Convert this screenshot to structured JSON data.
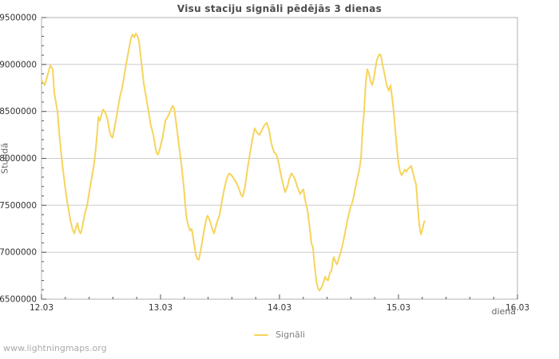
{
  "page": {
    "footer": "www.lightningmaps.org"
  },
  "colors": {
    "line": "#f6d45c",
    "grid": "#cccccc",
    "border": "#b0b0b0",
    "tick": "#555555",
    "tick_label": "#333333",
    "title": "#4d4d4d",
    "muted": "#888888",
    "footer": "#aaaaaa"
  },
  "chart_data": {
    "type": "line",
    "title": "Visu staciju signāli pēdējās 3 dienas",
    "xlabel": "dienā",
    "ylabel": "Stundā",
    "grid": "horizontal",
    "legend_position": "bottom-center",
    "xlim": [
      0,
      4
    ],
    "ylim": [
      6500000,
      9500000
    ],
    "x_minor_step": 0.2,
    "y_minor_step": 100000,
    "x_ticks": [
      {
        "t": 0,
        "label": "12.03"
      },
      {
        "t": 1,
        "label": "13.03"
      },
      {
        "t": 2,
        "label": "14.03"
      },
      {
        "t": 3,
        "label": "15.03"
      },
      {
        "t": 4,
        "label": "16.03"
      }
    ],
    "y_ticks": [
      {
        "v": 6500000,
        "label": "6500000"
      },
      {
        "v": 7000000,
        "label": "7000000"
      },
      {
        "v": 7500000,
        "label": "7500000"
      },
      {
        "v": 8000000,
        "label": "8000000"
      },
      {
        "v": 8500000,
        "label": "8500000"
      },
      {
        "v": 9000000,
        "label": "9000000"
      },
      {
        "v": 9500000,
        "label": "9500000"
      }
    ],
    "series": [
      {
        "name": "Signāli",
        "color": "#f6d45c",
        "points": [
          [
            0.0,
            8830000
          ],
          [
            0.027,
            8780000
          ],
          [
            0.047,
            8870000
          ],
          [
            0.074,
            8990000
          ],
          [
            0.094,
            8950000
          ],
          [
            0.107,
            8700000
          ],
          [
            0.134,
            8500000
          ],
          [
            0.154,
            8200000
          ],
          [
            0.174,
            7950000
          ],
          [
            0.188,
            7800000
          ],
          [
            0.208,
            7600000
          ],
          [
            0.228,
            7450000
          ],
          [
            0.242,
            7340000
          ],
          [
            0.262,
            7240000
          ],
          [
            0.275,
            7200000
          ],
          [
            0.289,
            7260000
          ],
          [
            0.302,
            7310000
          ],
          [
            0.315,
            7230000
          ],
          [
            0.329,
            7200000
          ],
          [
            0.342,
            7260000
          ],
          [
            0.362,
            7400000
          ],
          [
            0.383,
            7500000
          ],
          [
            0.403,
            7650000
          ],
          [
            0.423,
            7800000
          ],
          [
            0.443,
            7950000
          ],
          [
            0.456,
            8100000
          ],
          [
            0.47,
            8300000
          ],
          [
            0.477,
            8440000
          ],
          [
            0.49,
            8400000
          ],
          [
            0.503,
            8460000
          ],
          [
            0.517,
            8520000
          ],
          [
            0.53,
            8500000
          ],
          [
            0.544,
            8460000
          ],
          [
            0.557,
            8400000
          ],
          [
            0.57,
            8300000
          ],
          [
            0.584,
            8240000
          ],
          [
            0.597,
            8220000
          ],
          [
            0.617,
            8350000
          ],
          [
            0.638,
            8500000
          ],
          [
            0.658,
            8650000
          ],
          [
            0.678,
            8750000
          ],
          [
            0.691,
            8850000
          ],
          [
            0.711,
            9000000
          ],
          [
            0.732,
            9150000
          ],
          [
            0.752,
            9280000
          ],
          [
            0.765,
            9320000
          ],
          [
            0.779,
            9290000
          ],
          [
            0.792,
            9330000
          ],
          [
            0.805,
            9310000
          ],
          [
            0.819,
            9250000
          ],
          [
            0.832,
            9100000
          ],
          [
            0.846,
            8950000
          ],
          [
            0.859,
            8800000
          ],
          [
            0.879,
            8650000
          ],
          [
            0.899,
            8500000
          ],
          [
            0.919,
            8350000
          ],
          [
            0.94,
            8250000
          ],
          [
            0.953,
            8150000
          ],
          [
            0.966,
            8060000
          ],
          [
            0.98,
            8040000
          ],
          [
            1.0,
            8130000
          ],
          [
            1.02,
            8240000
          ],
          [
            1.04,
            8400000
          ],
          [
            1.06,
            8440000
          ],
          [
            1.081,
            8500000
          ],
          [
            1.101,
            8560000
          ],
          [
            1.114,
            8540000
          ],
          [
            1.134,
            8350000
          ],
          [
            1.154,
            8150000
          ],
          [
            1.174,
            7950000
          ],
          [
            1.195,
            7700000
          ],
          [
            1.208,
            7500000
          ],
          [
            1.221,
            7350000
          ],
          [
            1.235,
            7280000
          ],
          [
            1.248,
            7230000
          ],
          [
            1.262,
            7250000
          ],
          [
            1.275,
            7150000
          ],
          [
            1.295,
            6980000
          ],
          [
            1.309,
            6930000
          ],
          [
            1.322,
            6920000
          ],
          [
            1.342,
            7050000
          ],
          [
            1.362,
            7200000
          ],
          [
            1.383,
            7350000
          ],
          [
            1.396,
            7390000
          ],
          [
            1.416,
            7330000
          ],
          [
            1.436,
            7240000
          ],
          [
            1.45,
            7200000
          ],
          [
            1.477,
            7330000
          ],
          [
            1.497,
            7400000
          ],
          [
            1.517,
            7550000
          ],
          [
            1.537,
            7680000
          ],
          [
            1.557,
            7790000
          ],
          [
            1.577,
            7840000
          ],
          [
            1.597,
            7820000
          ],
          [
            1.617,
            7780000
          ],
          [
            1.638,
            7740000
          ],
          [
            1.658,
            7680000
          ],
          [
            1.678,
            7610000
          ],
          [
            1.691,
            7590000
          ],
          [
            1.711,
            7700000
          ],
          [
            1.732,
            7900000
          ],
          [
            1.752,
            8050000
          ],
          [
            1.772,
            8200000
          ],
          [
            1.792,
            8320000
          ],
          [
            1.812,
            8270000
          ],
          [
            1.832,
            8250000
          ],
          [
            1.852,
            8300000
          ],
          [
            1.872,
            8350000
          ],
          [
            1.893,
            8380000
          ],
          [
            1.913,
            8300000
          ],
          [
            1.933,
            8150000
          ],
          [
            1.953,
            8070000
          ],
          [
            1.973,
            8040000
          ],
          [
            1.993,
            7950000
          ],
          [
            2.013,
            7820000
          ],
          [
            2.034,
            7700000
          ],
          [
            2.047,
            7640000
          ],
          [
            2.067,
            7700000
          ],
          [
            2.081,
            7780000
          ],
          [
            2.101,
            7840000
          ],
          [
            2.121,
            7800000
          ],
          [
            2.134,
            7760000
          ],
          [
            2.154,
            7680000
          ],
          [
            2.174,
            7620000
          ],
          [
            2.188,
            7650000
          ],
          [
            2.201,
            7670000
          ],
          [
            2.215,
            7560000
          ],
          [
            2.235,
            7450000
          ],
          [
            2.255,
            7250000
          ],
          [
            2.268,
            7100000
          ],
          [
            2.281,
            7050000
          ],
          [
            2.295,
            6850000
          ],
          [
            2.309,
            6700000
          ],
          [
            2.322,
            6620000
          ],
          [
            2.336,
            6590000
          ],
          [
            2.356,
            6630000
          ],
          [
            2.369,
            6680000
          ],
          [
            2.383,
            6740000
          ],
          [
            2.396,
            6710000
          ],
          [
            2.409,
            6700000
          ],
          [
            2.423,
            6780000
          ],
          [
            2.436,
            6800000
          ],
          [
            2.45,
            6920000
          ],
          [
            2.456,
            6950000
          ],
          [
            2.47,
            6900000
          ],
          [
            2.483,
            6870000
          ],
          [
            2.503,
            6950000
          ],
          [
            2.517,
            7010000
          ],
          [
            2.537,
            7120000
          ],
          [
            2.557,
            7250000
          ],
          [
            2.577,
            7380000
          ],
          [
            2.597,
            7480000
          ],
          [
            2.617,
            7550000
          ],
          [
            2.638,
            7690000
          ],
          [
            2.658,
            7810000
          ],
          [
            2.671,
            7880000
          ],
          [
            2.685,
            8010000
          ],
          [
            2.698,
            8300000
          ],
          [
            2.711,
            8500000
          ],
          [
            2.725,
            8800000
          ],
          [
            2.738,
            8950000
          ],
          [
            2.752,
            8900000
          ],
          [
            2.765,
            8820000
          ],
          [
            2.779,
            8780000
          ],
          [
            2.792,
            8850000
          ],
          [
            2.805,
            8950000
          ],
          [
            2.819,
            9050000
          ],
          [
            2.839,
            9110000
          ],
          [
            2.852,
            9100000
          ],
          [
            2.866,
            9000000
          ],
          [
            2.879,
            8920000
          ],
          [
            2.893,
            8830000
          ],
          [
            2.906,
            8760000
          ],
          [
            2.919,
            8720000
          ],
          [
            2.933,
            8780000
          ],
          [
            2.946,
            8650000
          ],
          [
            2.96,
            8500000
          ],
          [
            2.973,
            8300000
          ],
          [
            2.987,
            8100000
          ],
          [
            3.0,
            7950000
          ],
          [
            3.013,
            7860000
          ],
          [
            3.027,
            7820000
          ],
          [
            3.04,
            7850000
          ],
          [
            3.054,
            7880000
          ],
          [
            3.067,
            7860000
          ],
          [
            3.081,
            7890000
          ],
          [
            3.094,
            7900000
          ],
          [
            3.107,
            7920000
          ],
          [
            3.121,
            7850000
          ],
          [
            3.134,
            7780000
          ],
          [
            3.148,
            7720000
          ],
          [
            3.161,
            7500000
          ],
          [
            3.174,
            7300000
          ],
          [
            3.188,
            7190000
          ],
          [
            3.201,
            7240000
          ],
          [
            3.215,
            7320000
          ],
          [
            3.221,
            7330000
          ]
        ]
      }
    ]
  }
}
